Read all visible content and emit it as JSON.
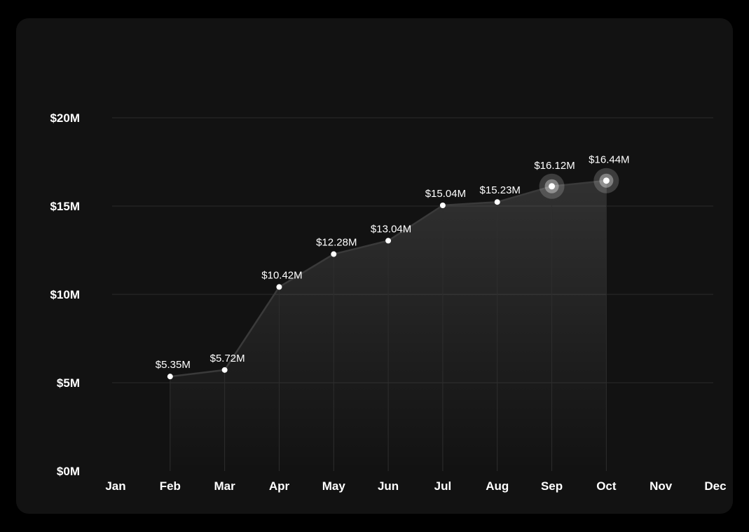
{
  "chart_data": {
    "type": "area",
    "title": "",
    "xlabel": "",
    "ylabel": "",
    "categories": [
      "Jan",
      "Feb",
      "Mar",
      "Apr",
      "May",
      "Jun",
      "Jul",
      "Aug",
      "Sep",
      "Oct",
      "Nov",
      "Dec"
    ],
    "y_ticks": [
      "$0M",
      "$5M",
      "$10M",
      "$15M",
      "$20M"
    ],
    "y_tick_values": [
      0,
      5,
      10,
      15,
      20
    ],
    "ylim": [
      0,
      20
    ],
    "grid": true,
    "legend": "none",
    "series": [
      {
        "x": [
          "Feb",
          "Mar",
          "Apr",
          "May",
          "Jun",
          "Jul",
          "Aug",
          "Sep",
          "Oct"
        ],
        "values": [
          5.35,
          5.72,
          10.42,
          12.28,
          13.04,
          15.04,
          15.23,
          16.12,
          16.44
        ],
        "labels": [
          "$5.35M",
          "$5.72M",
          "$10.42M",
          "$12.28M",
          "$13.04M",
          "$15.04M",
          "$15.23M",
          "$16.12M",
          "$16.44M"
        ]
      }
    ],
    "highlighted_points": [
      "Sep",
      "Oct"
    ],
    "colors": {
      "background": "#121212",
      "line": "#3a3a3a",
      "point": "#ffffff",
      "grid": "#2a2a2a"
    }
  }
}
